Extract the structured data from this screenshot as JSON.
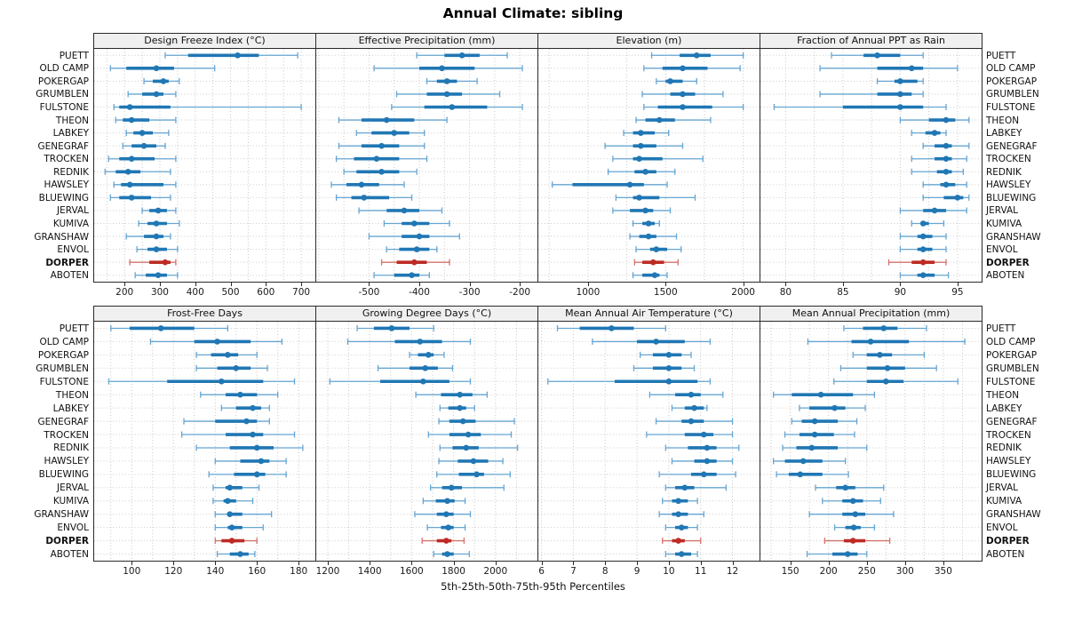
{
  "title": "Annual Climate: sibling",
  "caption": "5th-25th-50th-75th-95th Percentiles",
  "percentiles": [
    "5th",
    "25th",
    "50th",
    "75th",
    "95th"
  ],
  "stations": [
    "PUETT",
    "OLD CAMP",
    "POKERGAP",
    "GRUMBLEN",
    "FULSTONE",
    "THEON",
    "LABKEY",
    "GENEGRAF",
    "TROCKEN",
    "REDNIK",
    "HAWSLEY",
    "BLUEWING",
    "JERVAL",
    "KUMIVA",
    "GRANSHAW",
    "ENVOL",
    "DORPER",
    "ABOTEN"
  ],
  "highlight_station": "DORPER",
  "colors": {
    "series_main": "#2077b4",
    "series_light": "#66a5d2",
    "highlight_main": "#bd2b24",
    "highlight_light": "#d4726b",
    "header_bg": "#f0f0f0",
    "panel_border": "#2a2a2a",
    "grid": "#c6c6c6",
    "row_guide": "#cdcdcd"
  },
  "chart_data": [
    {
      "type": "dotplot-interval",
      "title": "Design Freeze Index (°C)",
      "xlim": [
        114,
        740
      ],
      "ticks": [
        200,
        300,
        400,
        500,
        600,
        700
      ],
      "grid_step": 50,
      "values": [
        [
          315,
          380,
          520,
          580,
          690
        ],
        [
          160,
          205,
          290,
          340,
          455
        ],
        [
          255,
          280,
          310,
          325,
          355
        ],
        [
          210,
          250,
          290,
          310,
          345
        ],
        [
          170,
          185,
          215,
          330,
          700
        ],
        [
          175,
          195,
          220,
          270,
          345
        ],
        [
          205,
          225,
          250,
          280,
          325
        ],
        [
          195,
          220,
          255,
          290,
          315
        ],
        [
          155,
          185,
          220,
          285,
          345
        ],
        [
          145,
          175,
          210,
          245,
          330
        ],
        [
          170,
          190,
          215,
          310,
          345
        ],
        [
          160,
          185,
          220,
          275,
          330
        ],
        [
          250,
          270,
          295,
          320,
          345
        ],
        [
          240,
          265,
          290,
          320,
          355
        ],
        [
          205,
          255,
          290,
          310,
          330
        ],
        [
          235,
          265,
          290,
          320,
          350
        ],
        [
          215,
          270,
          315,
          330,
          345
        ],
        [
          230,
          260,
          295,
          320,
          350
        ]
      ]
    },
    {
      "type": "dotplot-interval",
      "title": "Effective Precipitation (mm)",
      "xlim": [
        -605,
        -165
      ],
      "ticks": [
        -500,
        -400,
        -300,
        -200
      ],
      "grid_step": 50,
      "values": [
        [
          -405,
          -350,
          -315,
          -280,
          -225
        ],
        [
          -490,
          -400,
          -355,
          -290,
          -195
        ],
        [
          -385,
          -365,
          -345,
          -325,
          -285
        ],
        [
          -445,
          -385,
          -345,
          -315,
          -240
        ],
        [
          -455,
          -390,
          -335,
          -265,
          -195
        ],
        [
          -560,
          -515,
          -465,
          -410,
          -345
        ],
        [
          -525,
          -495,
          -450,
          -420,
          -390
        ],
        [
          -560,
          -515,
          -475,
          -440,
          -390
        ],
        [
          -565,
          -530,
          -485,
          -440,
          -385
        ],
        [
          -550,
          -525,
          -475,
          -440,
          -405
        ],
        [
          -575,
          -545,
          -515,
          -480,
          -430
        ],
        [
          -565,
          -535,
          -510,
          -460,
          -415
        ],
        [
          -520,
          -465,
          -430,
          -400,
          -355
        ],
        [
          -470,
          -435,
          -410,
          -380,
          -340
        ],
        [
          -500,
          -435,
          -400,
          -380,
          -320
        ],
        [
          -465,
          -440,
          -405,
          -380,
          -365
        ],
        [
          -475,
          -445,
          -410,
          -385,
          -340
        ],
        [
          -490,
          -450,
          -415,
          -400,
          -380
        ]
      ]
    },
    {
      "type": "dotplot-interval",
      "title": "Elevation (m)",
      "xlim": [
        680,
        2105
      ],
      "ticks": [
        1000,
        1500,
        2000
      ],
      "grid_step": 250,
      "values": [
        [
          1410,
          1590,
          1700,
          1790,
          2000
        ],
        [
          1360,
          1480,
          1610,
          1770,
          1980
        ],
        [
          1440,
          1500,
          1530,
          1610,
          1700
        ],
        [
          1350,
          1530,
          1610,
          1690,
          1870
        ],
        [
          1360,
          1450,
          1610,
          1800,
          2000
        ],
        [
          1310,
          1370,
          1460,
          1560,
          1790
        ],
        [
          1230,
          1290,
          1340,
          1430,
          1520
        ],
        [
          1110,
          1290,
          1340,
          1440,
          1610
        ],
        [
          1160,
          1290,
          1330,
          1480,
          1740
        ],
        [
          1130,
          1300,
          1370,
          1440,
          1560
        ],
        [
          770,
          900,
          1270,
          1360,
          1510
        ],
        [
          1180,
          1290,
          1330,
          1460,
          1690
        ],
        [
          1160,
          1270,
          1370,
          1420,
          1530
        ],
        [
          1290,
          1350,
          1390,
          1430,
          1460
        ],
        [
          1270,
          1330,
          1390,
          1440,
          1570
        ],
        [
          1310,
          1400,
          1440,
          1510,
          1600
        ],
        [
          1300,
          1350,
          1420,
          1490,
          1580
        ],
        [
          1290,
          1350,
          1430,
          1460,
          1510
        ]
      ]
    },
    {
      "type": "dotplot-interval",
      "title": "Fraction of Annual PPT as Rain",
      "xlim": [
        77.8,
        97.1
      ],
      "ticks": [
        80,
        85,
        90,
        95
      ],
      "grid_step": 2.5,
      "values": [
        [
          84,
          86.8,
          88,
          90,
          92
        ],
        [
          83,
          88,
          91,
          92,
          95
        ],
        [
          88,
          89.5,
          90,
          91.5,
          92
        ],
        [
          83,
          88,
          90,
          91,
          92
        ],
        [
          79,
          85,
          90,
          92,
          94
        ],
        [
          90,
          92.5,
          94,
          94.8,
          96
        ],
        [
          91,
          92.2,
          93,
          93.5,
          94
        ],
        [
          92,
          93,
          94,
          94.5,
          96
        ],
        [
          91,
          93,
          94,
          94.5,
          95.8
        ],
        [
          91,
          93.2,
          94,
          94.5,
          95.5
        ],
        [
          92,
          93.5,
          94,
          94.8,
          95.8
        ],
        [
          92,
          93.8,
          95,
          95.5,
          96
        ],
        [
          90,
          92,
          93,
          94,
          95.8
        ],
        [
          91,
          91.8,
          92,
          92.5,
          93.8
        ],
        [
          90,
          91.5,
          92,
          92.8,
          94
        ],
        [
          90,
          91.5,
          92,
          92.8,
          94
        ],
        [
          89,
          91,
          92,
          93,
          94
        ],
        [
          90,
          91.5,
          92,
          93,
          94.2
        ]
      ]
    },
    {
      "type": "dotplot-interval",
      "title": "Frost-Free Days",
      "xlim": [
        82,
        188
      ],
      "ticks": [
        100,
        120,
        140,
        160,
        180
      ],
      "grid_step": 10,
      "values": [
        [
          90,
          99,
          114,
          130,
          146
        ],
        [
          109,
          130,
          141,
          157,
          172
        ],
        [
          131,
          138,
          146,
          151,
          160
        ],
        [
          131,
          141,
          150,
          157,
          165
        ],
        [
          89,
          117,
          143,
          163,
          178
        ],
        [
          133,
          145,
          152,
          160,
          170
        ],
        [
          143,
          150,
          158,
          162,
          166
        ],
        [
          125,
          140,
          155,
          160,
          166
        ],
        [
          124,
          145,
          158,
          163,
          178
        ],
        [
          131,
          147,
          160,
          168,
          182
        ],
        [
          140,
          152,
          162,
          166,
          174
        ],
        [
          137,
          149,
          160,
          164,
          174
        ],
        [
          139,
          145,
          147,
          153,
          161
        ],
        [
          139,
          144,
          146,
          150,
          158
        ],
        [
          140,
          146,
          147,
          153,
          167
        ],
        [
          140,
          146,
          148,
          153,
          163
        ],
        [
          140,
          143,
          148,
          154,
          160
        ],
        [
          141,
          147,
          152,
          156,
          159
        ]
      ]
    },
    {
      "type": "dotplot-interval",
      "title": "Growing Degree Days (°C)",
      "xlim": [
        1145,
        2200
      ],
      "ticks": [
        1200,
        1400,
        1600,
        1800,
        2000
      ],
      "grid_step": 100,
      "values": [
        [
          1340,
          1420,
          1505,
          1590,
          1705
        ],
        [
          1295,
          1520,
          1640,
          1745,
          1880
        ],
        [
          1590,
          1630,
          1680,
          1705,
          1755
        ],
        [
          1440,
          1590,
          1665,
          1725,
          1795
        ],
        [
          1210,
          1450,
          1655,
          1780,
          1880
        ],
        [
          1620,
          1740,
          1830,
          1890,
          1960
        ],
        [
          1735,
          1775,
          1830,
          1860,
          1900
        ],
        [
          1730,
          1780,
          1845,
          1905,
          2090
        ],
        [
          1680,
          1780,
          1870,
          1930,
          2075
        ],
        [
          1735,
          1795,
          1860,
          1920,
          2105
        ],
        [
          1730,
          1820,
          1895,
          1965,
          2035
        ],
        [
          1720,
          1825,
          1910,
          1945,
          2070
        ],
        [
          1690,
          1745,
          1790,
          1840,
          2040
        ],
        [
          1655,
          1715,
          1770,
          1805,
          1855
        ],
        [
          1615,
          1720,
          1765,
          1800,
          1880
        ],
        [
          1675,
          1740,
          1775,
          1800,
          1855
        ],
        [
          1650,
          1720,
          1765,
          1790,
          1850
        ],
        [
          1705,
          1745,
          1770,
          1800,
          1875
        ]
      ]
    },
    {
      "type": "dotplot-interval",
      "title": "Mean Annual Air Temperature (°C)",
      "xlim": [
        5.9,
        12.85
      ],
      "ticks": [
        6,
        7,
        8,
        9,
        10,
        11,
        12
      ],
      "grid_step": 1,
      "values": [
        [
          6.5,
          7.2,
          8.2,
          8.9,
          9.9
        ],
        [
          7.6,
          9.0,
          9.6,
          10.5,
          11.3
        ],
        [
          9.1,
          9.5,
          10.0,
          10.4,
          10.7
        ],
        [
          8.9,
          9.5,
          10.0,
          10.4,
          10.8
        ],
        [
          6.2,
          8.3,
          10.0,
          10.9,
          11.3
        ],
        [
          9.4,
          10.2,
          10.7,
          11.0,
          11.7
        ],
        [
          10.1,
          10.5,
          10.8,
          11.1,
          11.2
        ],
        [
          9.6,
          10.4,
          10.7,
          11.1,
          12.0
        ],
        [
          9.3,
          10.5,
          11.1,
          11.4,
          12.0
        ],
        [
          9.9,
          10.6,
          11.2,
          11.5,
          12.2
        ],
        [
          10.1,
          10.8,
          11.2,
          11.5,
          12.0
        ],
        [
          9.7,
          10.7,
          11.1,
          11.5,
          12.1
        ],
        [
          9.9,
          10.2,
          10.5,
          10.8,
          11.8
        ],
        [
          9.8,
          10.1,
          10.3,
          10.6,
          10.9
        ],
        [
          9.7,
          10.1,
          10.3,
          10.6,
          11.1
        ],
        [
          9.9,
          10.2,
          10.4,
          10.6,
          10.9
        ],
        [
          9.8,
          10.1,
          10.3,
          10.5,
          11.0
        ],
        [
          9.9,
          10.2,
          10.4,
          10.7,
          10.9
        ]
      ]
    },
    {
      "type": "dotplot-interval",
      "title": "Mean Annual Precipitation (mm)",
      "xlim": [
        111,
        400
      ],
      "ticks": [
        150,
        200,
        250,
        300,
        350
      ],
      "grid_step": 25,
      "values": [
        [
          220,
          245,
          272,
          290,
          328
        ],
        [
          173,
          230,
          255,
          305,
          378
        ],
        [
          232,
          250,
          267,
          283,
          325
        ],
        [
          216,
          250,
          277,
          300,
          341
        ],
        [
          207,
          250,
          275,
          298,
          369
        ],
        [
          128,
          152,
          190,
          232,
          260
        ],
        [
          162,
          175,
          208,
          222,
          248
        ],
        [
          152,
          165,
          182,
          212,
          237
        ],
        [
          143,
          162,
          182,
          207,
          234
        ],
        [
          140,
          158,
          178,
          212,
          250
        ],
        [
          128,
          143,
          167,
          192,
          222
        ],
        [
          132,
          148,
          163,
          192,
          226
        ],
        [
          183,
          210,
          222,
          235,
          272
        ],
        [
          192,
          218,
          232,
          245,
          268
        ],
        [
          175,
          218,
          235,
          248,
          285
        ],
        [
          208,
          222,
          233,
          242,
          260
        ],
        [
          195,
          220,
          232,
          248,
          280
        ],
        [
          172,
          205,
          225,
          238,
          250
        ]
      ]
    }
  ]
}
